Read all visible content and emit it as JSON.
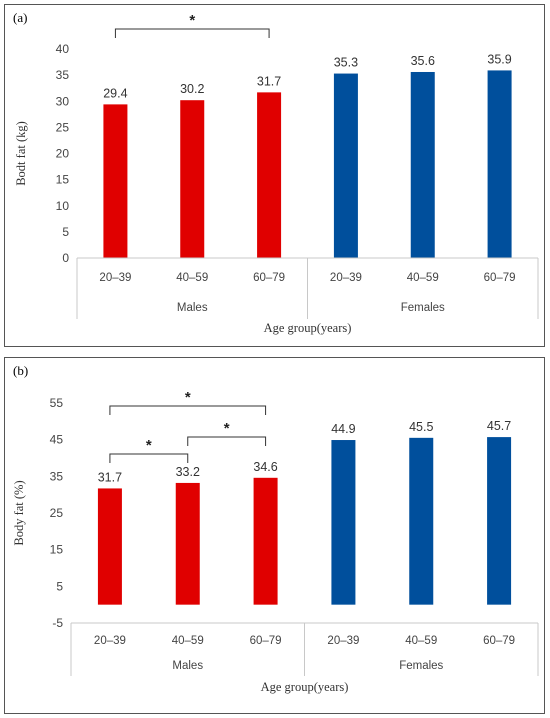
{
  "chart_data": [
    {
      "type": "bar",
      "panel_label": "(a)",
      "groups": [
        "Males",
        "Females"
      ],
      "categories": [
        "20–39",
        "40–59",
        "60–79",
        "20–39",
        "40–59",
        "60–79"
      ],
      "values": [
        29.4,
        30.2,
        31.7,
        35.3,
        35.6,
        35.9
      ],
      "value_labels": [
        "29.4",
        "30.2",
        "31.7",
        "35.3",
        "35.6",
        "35.9"
      ],
      "bar_colors": [
        "#e00000",
        "#e00000",
        "#e00000",
        "#004f9c",
        "#004f9c",
        "#004f9c"
      ],
      "xlabel": "Age group(years)",
      "ylabel": "Bodt fat (kg)",
      "ylim": [
        0,
        40
      ],
      "yticks": [
        0,
        5,
        10,
        15,
        20,
        25,
        30,
        35,
        40
      ],
      "significance": [
        {
          "from": 0,
          "to": 2,
          "label": "*"
        }
      ],
      "grid": false
    },
    {
      "type": "bar",
      "panel_label": "(b)",
      "groups": [
        "Males",
        "Females"
      ],
      "categories": [
        "20–39",
        "40–59",
        "60–79",
        "20–39",
        "40–59",
        "60–79"
      ],
      "values": [
        31.7,
        33.2,
        34.6,
        44.9,
        45.5,
        45.7
      ],
      "value_labels": [
        "31.7",
        "33.2",
        "34.6",
        "44.9",
        "45.5",
        "45.7"
      ],
      "bar_colors": [
        "#e00000",
        "#e00000",
        "#e00000",
        "#004f9c",
        "#004f9c",
        "#004f9c"
      ],
      "xlabel": "Age group(years)",
      "ylabel": "Body fat (%)",
      "ylim": [
        -5,
        55
      ],
      "yticks": [
        -5,
        5,
        15,
        25,
        35,
        45,
        55
      ],
      "significance": [
        {
          "from": 0,
          "to": 2,
          "label": "*"
        },
        {
          "from": 0,
          "to": 1,
          "label": "*"
        },
        {
          "from": 1,
          "to": 2,
          "label": "*"
        }
      ],
      "grid": false
    }
  ]
}
